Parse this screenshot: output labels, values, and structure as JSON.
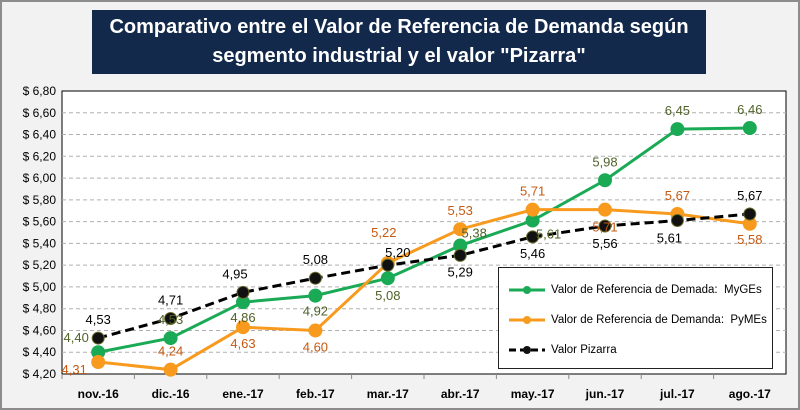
{
  "chart_data": {
    "type": "line",
    "title": "Comparativo entre el Valor de Referencia de Demanda según segmento industrial y el valor \"Pizarra\"",
    "categories": [
      "nov.-16",
      "dic.-16",
      "ene.-17",
      "feb.-17",
      "mar.-17",
      "abr.-17",
      "may.-17",
      "jun.-17",
      "jul.-17",
      "ago.-17"
    ],
    "ylim": [
      4.2,
      6.8
    ],
    "yticks": [
      "$ 4,20",
      "$ 4,40",
      "$ 4,60",
      "$ 4,80",
      "$ 5,00",
      "$ 5,20",
      "$ 5,40",
      "$ 5,60",
      "$ 5,80",
      "$ 6,00",
      "$ 6,20",
      "$ 6,40",
      "$ 6,60",
      "$ 6,80"
    ],
    "grid": true,
    "legend_position": "bottom-right",
    "series": [
      {
        "name": "Valor de Referencia de Demada:  MyGEs",
        "color": "#1aaa55",
        "label_color": "#4f6228",
        "style": "solid",
        "values": [
          4.4,
          4.53,
          4.86,
          4.92,
          5.08,
          5.38,
          5.61,
          5.98,
          6.45,
          6.46
        ],
        "labels": [
          "4,40",
          "4,53",
          "4,86",
          "4,92",
          "5,08",
          "5,38",
          "5,61",
          "5,98",
          "6,45",
          "6,46"
        ]
      },
      {
        "name": "Valor de Referencia de Demanda:  PyMEs",
        "color": "#f79a1e",
        "label_color": "#c65911",
        "style": "solid",
        "values": [
          4.31,
          4.24,
          4.63,
          4.6,
          5.22,
          5.53,
          5.71,
          5.71,
          5.67,
          5.58
        ],
        "labels": [
          "4,31",
          "4,24",
          "4,63",
          "4,60",
          "5,22",
          "5,53",
          "5,71",
          "5,71",
          "5,67",
          "5,58"
        ]
      },
      {
        "name": "Valor Pizarra",
        "color": "#000000",
        "label_color": "#000000",
        "style": "dashed",
        "values": [
          4.53,
          4.71,
          4.95,
          5.08,
          5.2,
          5.29,
          5.46,
          5.56,
          5.61,
          5.67
        ],
        "labels": [
          "4,53",
          "4,71",
          "4,95",
          "5,08",
          "5,20",
          "5,29",
          "5,46",
          "5,56",
          "5,61",
          "5,67"
        ]
      }
    ]
  }
}
